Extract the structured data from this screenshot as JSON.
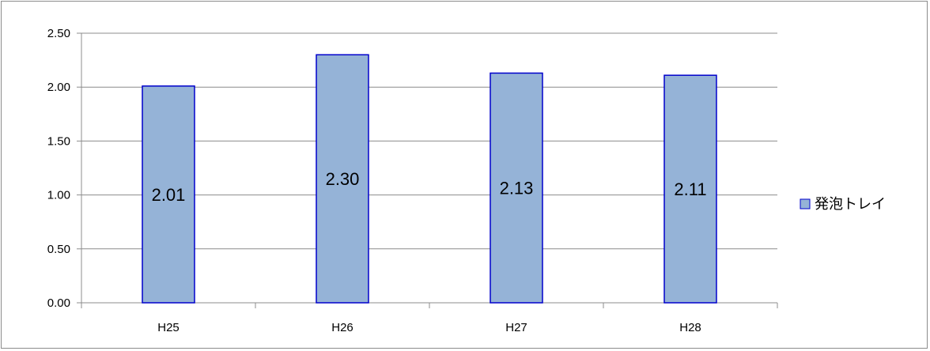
{
  "chart_data": {
    "type": "bar",
    "categories": [
      "H25",
      "H26",
      "H27",
      "H28"
    ],
    "series": [
      {
        "name": "発泡トレイ",
        "values": [
          2.01,
          2.3,
          2.13,
          2.11
        ],
        "data_labels": [
          "2.01",
          "2.30",
          "2.13",
          "2.11"
        ],
        "color": "#95b3d7",
        "border_color": "#0000cc"
      }
    ],
    "title": "",
    "xlabel": "",
    "ylabel": "",
    "ylim": [
      0,
      2.5
    ],
    "y_ticks": [
      "0.00",
      "0.50",
      "1.00",
      "1.50",
      "2.00",
      "2.50"
    ],
    "grid": true,
    "legend_position": "right"
  }
}
